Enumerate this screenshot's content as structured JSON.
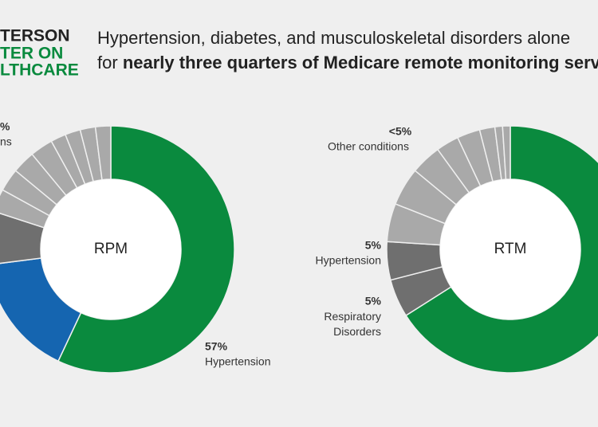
{
  "header": {
    "logo": [
      "TERSON",
      "TER ON",
      "LTHCARE"
    ],
    "title_line1": "Hypertension, diabetes, and musculoskeletal disorders alone",
    "title_line2_normal": "for",
    "title_line2_bold": "nearly three quarters of Medicare remote monitoring servic"
  },
  "chart_data": [
    {
      "type": "donut",
      "center_label": "RPM",
      "categories": [
        "Hypertension",
        null,
        null,
        null,
        null,
        null,
        null,
        null,
        null,
        null,
        null
      ],
      "values": [
        57,
        16,
        7,
        3,
        3,
        3,
        3,
        2,
        2,
        2,
        2
      ],
      "value_labels": [
        "57%",
        null,
        null,
        null,
        null,
        null,
        null,
        null,
        null,
        null,
        null
      ],
      "colors": [
        "#0a8a3e",
        "#1565b0",
        "#6f6f6f",
        "#a9a9a9",
        "#a9a9a9",
        "#a9a9a9",
        "#a9a9a9",
        "#a9a9a9",
        "#a9a9a9",
        "#a9a9a9",
        "#a9a9a9"
      ],
      "annotations": [
        {
          "value_label": "%",
          "label": "ns"
        }
      ]
    },
    {
      "type": "donut",
      "center_label": "RTM",
      "categories": [
        null,
        "Respiratory Disorders",
        "Hypertension",
        null,
        null,
        null,
        null,
        null,
        null,
        null,
        null
      ],
      "values": [
        66,
        5,
        5,
        5,
        5,
        4,
        3,
        3,
        2,
        1,
        1
      ],
      "value_labels": [
        null,
        "5%",
        "5%",
        null,
        null,
        null,
        null,
        null,
        null,
        null,
        null
      ],
      "colors": [
        "#0a8a3e",
        "#6f6f6f",
        "#6f6f6f",
        "#a9a9a9",
        "#a9a9a9",
        "#a9a9a9",
        "#a9a9a9",
        "#a9a9a9",
        "#a9a9a9",
        "#a9a9a9",
        "#a9a9a9"
      ],
      "annotations": [
        {
          "value_label": "<5%",
          "label": "Other conditions"
        }
      ]
    }
  ]
}
